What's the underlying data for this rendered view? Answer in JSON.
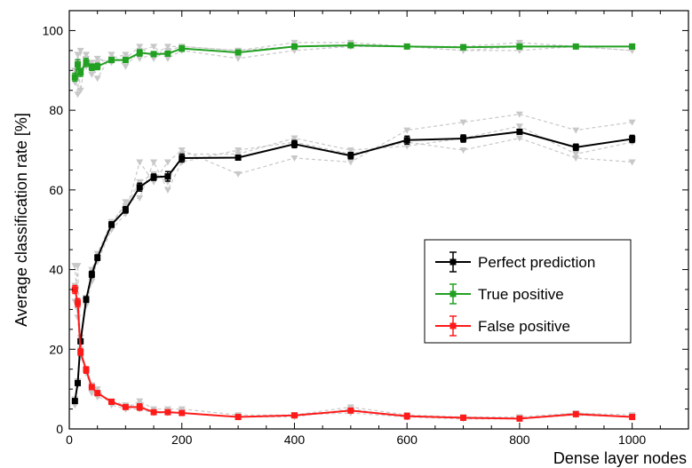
{
  "chart_data": {
    "type": "line",
    "xlabel": "Dense layer nodes",
    "ylabel": "Average classification rate [%]",
    "xlim": [
      0,
      1100
    ],
    "ylim": [
      0,
      105
    ],
    "xticks": [
      0,
      200,
      400,
      600,
      800,
      1000
    ],
    "yticks": [
      0,
      20,
      40,
      60,
      80,
      100
    ],
    "grid": false,
    "legend_position": "right",
    "series": [
      {
        "name": "Perfect prediction",
        "color": "#000000",
        "x": [
          10,
          15,
          20,
          30,
          40,
          50,
          75,
          100,
          125,
          150,
          175,
          200,
          300,
          400,
          500,
          600,
          700,
          800,
          900,
          1000
        ],
        "y": [
          7,
          11.5,
          22,
          32.5,
          38.8,
          43,
          51.3,
          55,
          60.7,
          63.2,
          63.4,
          68,
          68.1,
          71.5,
          68.6,
          72.5,
          72.9,
          74.6,
          70.7,
          72.8
        ],
        "err": [
          0.5,
          0.5,
          0.5,
          0.7,
          0.8,
          0.7,
          0.7,
          0.8,
          1.0,
          0.8,
          1.2,
          1.0,
          0.5,
          0.9,
          0.8,
          1.0,
          0.9,
          0.6,
          0.8,
          0.9
        ]
      },
      {
        "name": "True positive",
        "color": "#22a022",
        "x": [
          10,
          15,
          20,
          30,
          40,
          50,
          75,
          100,
          125,
          150,
          175,
          200,
          300,
          400,
          500,
          600,
          700,
          800,
          900,
          1000
        ],
        "y": [
          88.3,
          91.5,
          89.5,
          92,
          90.8,
          91,
          92.6,
          92.6,
          94.4,
          94.1,
          94.2,
          95.5,
          94.5,
          96,
          96.3,
          96,
          95.8,
          96,
          96,
          96
        ],
        "err": [
          1.0,
          1.2,
          1.0,
          1.0,
          0.8,
          0.8,
          0.6,
          0.6,
          0.8,
          0.6,
          0.6,
          0.7,
          0.6,
          0.6,
          0.4,
          0.5,
          0.6,
          0.6,
          0.5,
          0.6
        ]
      },
      {
        "name": "False positive",
        "color": "#ff1a1a",
        "x": [
          10,
          15,
          20,
          30,
          40,
          50,
          75,
          100,
          125,
          150,
          175,
          200,
          300,
          400,
          500,
          600,
          700,
          800,
          900,
          1000
        ],
        "y": [
          35,
          31.7,
          19.3,
          14.8,
          10.5,
          9,
          6.8,
          5.5,
          5.5,
          4.2,
          4.2,
          4,
          3,
          3.4,
          4.6,
          3.2,
          2.8,
          2.6,
          3.7,
          3
        ],
        "err": [
          1.0,
          1.0,
          0.8,
          0.8,
          0.6,
          0.6,
          0.5,
          0.5,
          0.8,
          0.5,
          0.4,
          0.5,
          0.5,
          0.4,
          0.5,
          0.7,
          0.5,
          0.5,
          0.5,
          0.5
        ]
      }
    ],
    "background_runs_color": "#c8c8c8",
    "background_runs": [
      {
        "x": [
          10,
          15,
          20,
          30,
          40,
          50,
          75,
          100,
          125,
          150,
          175,
          200,
          300,
          400,
          500,
          600,
          700,
          800,
          900,
          1000
        ],
        "y": [
          6.5,
          12,
          22,
          32,
          40,
          44,
          52,
          56,
          62,
          64,
          62,
          69,
          69,
          73,
          70,
          71,
          73,
          76,
          69,
          72
        ]
      },
      {
        "x": [
          10,
          15,
          20,
          30,
          40,
          50,
          75,
          100,
          125,
          150,
          175,
          200,
          300,
          400,
          500,
          600,
          700,
          800,
          900,
          1000
        ],
        "y": [
          7.5,
          11,
          21,
          33,
          38,
          42,
          50,
          54,
          67,
          62,
          67,
          70,
          64,
          68,
          67,
          75,
          77,
          79,
          75,
          77
        ]
      },
      {
        "x": [
          10,
          15,
          20,
          30,
          40,
          50,
          75,
          100,
          125,
          150,
          175,
          200,
          300,
          400,
          500,
          600,
          700,
          800,
          900,
          1000
        ],
        "y": [
          6,
          12,
          23,
          31,
          37,
          43,
          51,
          57,
          58,
          67,
          60,
          67,
          70,
          72,
          69,
          72,
          70,
          73,
          68,
          67
        ]
      },
      {
        "x": [
          10,
          15,
          20,
          30,
          40,
          50,
          75,
          100,
          125,
          150,
          175,
          200,
          300,
          400,
          500,
          600,
          700,
          800,
          900,
          1000
        ],
        "y": [
          87,
          92,
          85,
          94,
          89,
          93,
          92,
          93,
          96,
          93,
          95,
          96,
          95,
          97,
          97,
          96,
          96,
          97,
          96,
          95
        ]
      },
      {
        "x": [
          10,
          15,
          20,
          30,
          40,
          50,
          75,
          100,
          125,
          150,
          175,
          200,
          300,
          400,
          500,
          600,
          700,
          800,
          900,
          1000
        ],
        "y": [
          90,
          84,
          95,
          91,
          92,
          88,
          94,
          91,
          95,
          96,
          93,
          95,
          93,
          95,
          96,
          96,
          95,
          96,
          96,
          96
        ]
      },
      {
        "x": [
          10,
          15,
          20,
          30,
          40,
          50,
          75,
          100,
          125,
          150,
          175,
          200,
          300,
          400,
          500,
          600,
          700,
          800,
          900,
          1000
        ],
        "y": [
          88,
          94,
          90,
          93,
          91,
          92,
          93,
          94,
          93,
          94,
          96,
          96,
          95,
          96,
          96,
          96,
          95,
          95,
          96,
          95
        ]
      },
      {
        "x": [
          10,
          15,
          20,
          30,
          40,
          50,
          75,
          100,
          125,
          150,
          175,
          200,
          300,
          400,
          500,
          600,
          700,
          800,
          900,
          1000
        ],
        "y": [
          41,
          30,
          19,
          14,
          10,
          9,
          7,
          6,
          6,
          4,
          4,
          4,
          3,
          3,
          5,
          3,
          3,
          2.5,
          4,
          3
        ]
      },
      {
        "x": [
          10,
          15,
          20,
          30,
          40,
          50,
          75,
          100,
          125,
          150,
          175,
          200,
          300,
          400,
          500,
          600,
          700,
          800,
          900,
          1000
        ],
        "y": [
          32,
          41,
          20,
          15,
          11,
          10,
          6,
          5,
          7,
          5,
          5,
          5,
          3.5,
          3.5,
          5.5,
          3.5,
          3,
          3,
          4,
          3.5
        ]
      },
      {
        "x": [
          10,
          15,
          20,
          30,
          40,
          50,
          75,
          100,
          125,
          150,
          175,
          200,
          300,
          400,
          500,
          600,
          700,
          800,
          900,
          1000
        ],
        "y": [
          36,
          28,
          18,
          15,
          9,
          8,
          7,
          5,
          5,
          4,
          4,
          4,
          3,
          3.5,
          4,
          3,
          2.5,
          2.5,
          3.5,
          3
        ]
      }
    ]
  }
}
